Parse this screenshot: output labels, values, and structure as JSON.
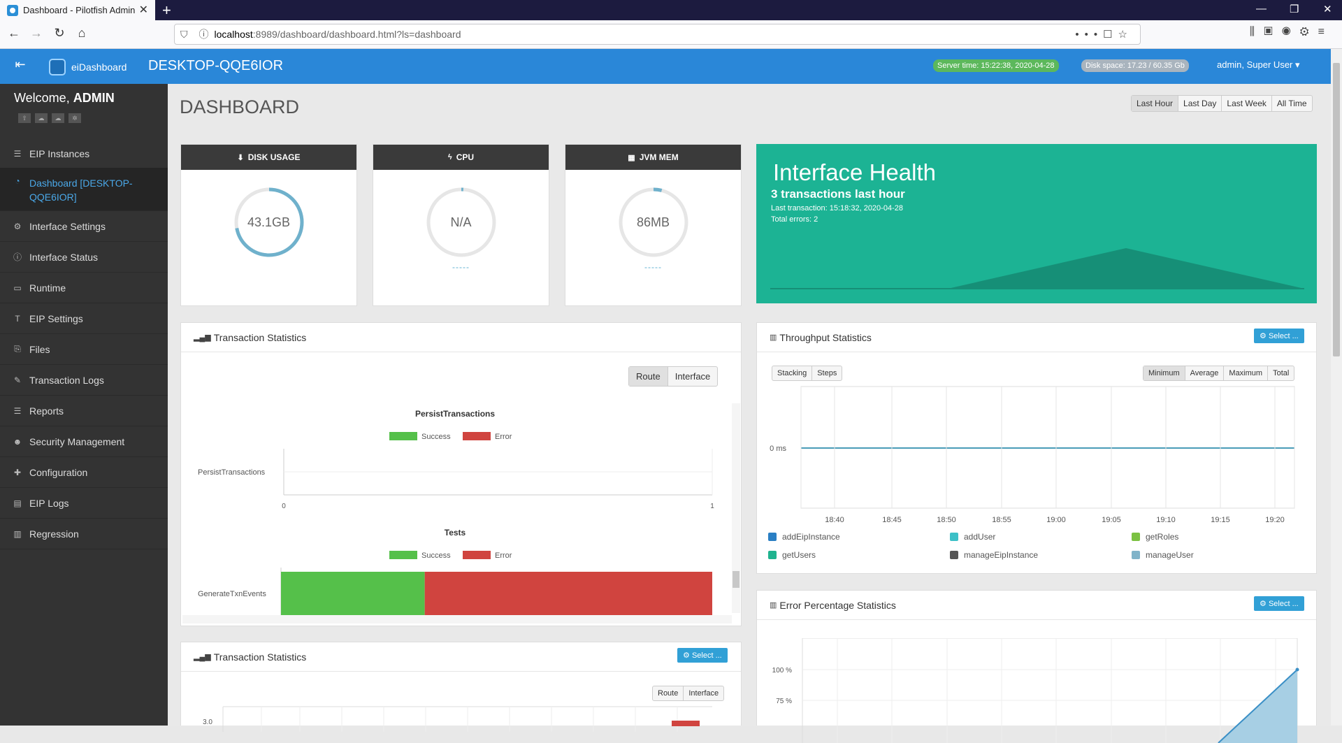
{
  "browser": {
    "tab_title": "Dashboard - Pilotfish Admin",
    "url_host": "localhost",
    "url_path": ":8989/dashboard/dashboard.html?ls=dashboard"
  },
  "header": {
    "brand": "eiDashboard",
    "host": "DESKTOP-QQE6IOR",
    "server_time": "Server time: 15:22:38, 2020-04-28",
    "disk_space": "Disk space: 17.23 / 60.35 Gb",
    "user": "admin, Super User"
  },
  "sidebar": {
    "welcome_prefix": "Welcome, ",
    "welcome_user": "ADMIN",
    "items": [
      {
        "label": "EIP Instances",
        "icon": "list-icon"
      },
      {
        "label": "Dashboard [DESKTOP-QQE6IOR]",
        "icon": "dashboard-icon"
      },
      {
        "label": "Interface Settings",
        "icon": "cogs-icon"
      },
      {
        "label": "Interface Status",
        "icon": "info-icon"
      },
      {
        "label": "Runtime",
        "icon": "monitor-icon"
      },
      {
        "label": "EIP Settings",
        "icon": "text-icon"
      },
      {
        "label": "Files",
        "icon": "files-icon"
      },
      {
        "label": "Transaction Logs",
        "icon": "edit-icon"
      },
      {
        "label": "Reports",
        "icon": "list-icon"
      },
      {
        "label": "Security Management",
        "icon": "users-icon"
      },
      {
        "label": "Configuration",
        "icon": "puzzle-icon"
      },
      {
        "label": "EIP Logs",
        "icon": "file-icon"
      },
      {
        "label": "Regression",
        "icon": "chart-icon"
      }
    ]
  },
  "page": {
    "title": "DASHBOARD",
    "ranges": [
      "Last Hour",
      "Last Day",
      "Last Week",
      "All Time"
    ]
  },
  "stats": {
    "disk": {
      "label": "DISK USAGE",
      "value": "43.1GB",
      "fraction": 0.72
    },
    "cpu": {
      "label": "CPU",
      "value": "N/A",
      "dash": "-----",
      "fraction": 0.01
    },
    "jvm": {
      "label": "JVM MEM",
      "value": "86MB",
      "dash": "-----",
      "fraction": 0.04
    }
  },
  "health": {
    "title": "Interface Health",
    "summary": "3 transactions last hour",
    "last": "Last transaction: 15:18:32, 2020-04-28",
    "errors": "Total errors: 2"
  },
  "txn": {
    "title": "Transaction Statistics",
    "toggle": [
      "Route",
      "Interface"
    ],
    "chart1": {
      "title": "PersistTransactions",
      "category": "PersistTransactions",
      "success": 0,
      "error": 0,
      "ticks": [
        "0",
        "1"
      ]
    },
    "chart2": {
      "title": "Tests",
      "category": "GenerateTxnEvents",
      "success": 1,
      "error": 2
    },
    "legend_success": "Success",
    "legend_error": "Error"
  },
  "txn2": {
    "title": "Transaction Statistics",
    "select": "Select ...",
    "toggle": [
      "Route",
      "Interface"
    ],
    "ytick": "3.0"
  },
  "throughput": {
    "title": "Throughput Statistics",
    "select": "Select ...",
    "left_toggle": [
      "Stacking",
      "Steps"
    ],
    "right_toggle": [
      "Minimum",
      "Average",
      "Maximum",
      "Total"
    ],
    "ylabel": "0 ms",
    "xticks": [
      "18:40",
      "18:45",
      "18:50",
      "18:55",
      "19:00",
      "19:05",
      "19:10",
      "19:15",
      "19:20"
    ],
    "series": [
      {
        "name": "addEipInstance",
        "color": "#2a7fc4"
      },
      {
        "name": "addUser",
        "color": "#3cc0c7"
      },
      {
        "name": "getRoles",
        "color": "#7bc142"
      },
      {
        "name": "getUsers",
        "color": "#1fb38f"
      },
      {
        "name": "manageEipInstance",
        "color": "#555555"
      },
      {
        "name": "manageUser",
        "color": "#7fb3c9"
      }
    ]
  },
  "error_pct": {
    "title": "Error Percentage Statistics",
    "select": "Select ...",
    "yticks": [
      "100 %",
      "75 %"
    ]
  }
}
